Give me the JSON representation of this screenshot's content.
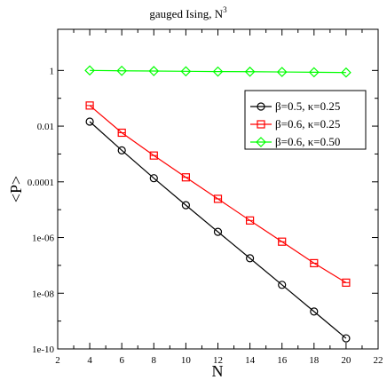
{
  "chart_data": {
    "type": "line",
    "title": "gauged Ising, N",
    "title_superscript": "3",
    "xlabel": "N",
    "ylabel": "<P>",
    "xlim": [
      2,
      22
    ],
    "ylim": [
      1e-10,
      30
    ],
    "yscale": "log",
    "x_ticks": [
      2,
      4,
      6,
      8,
      10,
      12,
      14,
      16,
      18,
      20,
      22
    ],
    "x_tick_labels": [
      "2",
      "4",
      "6",
      "8",
      "10",
      "12",
      "14",
      "16",
      "18",
      "20",
      "22"
    ],
    "y_ticks": [
      1e-10,
      1e-08,
      1e-06,
      0.0001,
      0.01,
      1
    ],
    "y_tick_labels": [
      "1e-10",
      "1e-08",
      "1e-06",
      "0.0001",
      "0.01",
      "1"
    ],
    "grid": false,
    "legend_position": "top-right",
    "x": [
      4,
      6,
      8,
      10,
      12,
      14,
      16,
      18,
      20
    ],
    "series": [
      {
        "name": "β=0.5, κ=0.25",
        "color": "#000000",
        "marker": "circle",
        "values": [
          0.0145,
          0.00135,
          0.000135,
          1.45e-05,
          1.6e-06,
          1.8e-07,
          2e-08,
          2.2e-09,
          2.4e-10
        ]
      },
      {
        "name": "β=0.6, κ=0.25",
        "color": "#ff0000",
        "marker": "square",
        "values": [
          0.055,
          0.0058,
          0.00088,
          0.000145,
          2.45e-05,
          4.1e-06,
          7.1e-07,
          1.2e-07,
          2.4e-08
        ]
      },
      {
        "name": "β=0.6, κ=0.50",
        "color": "#00ff00",
        "marker": "diamond",
        "values": [
          1.0,
          0.97,
          0.95,
          0.93,
          0.91,
          0.9,
          0.88,
          0.86,
          0.84
        ]
      }
    ]
  }
}
